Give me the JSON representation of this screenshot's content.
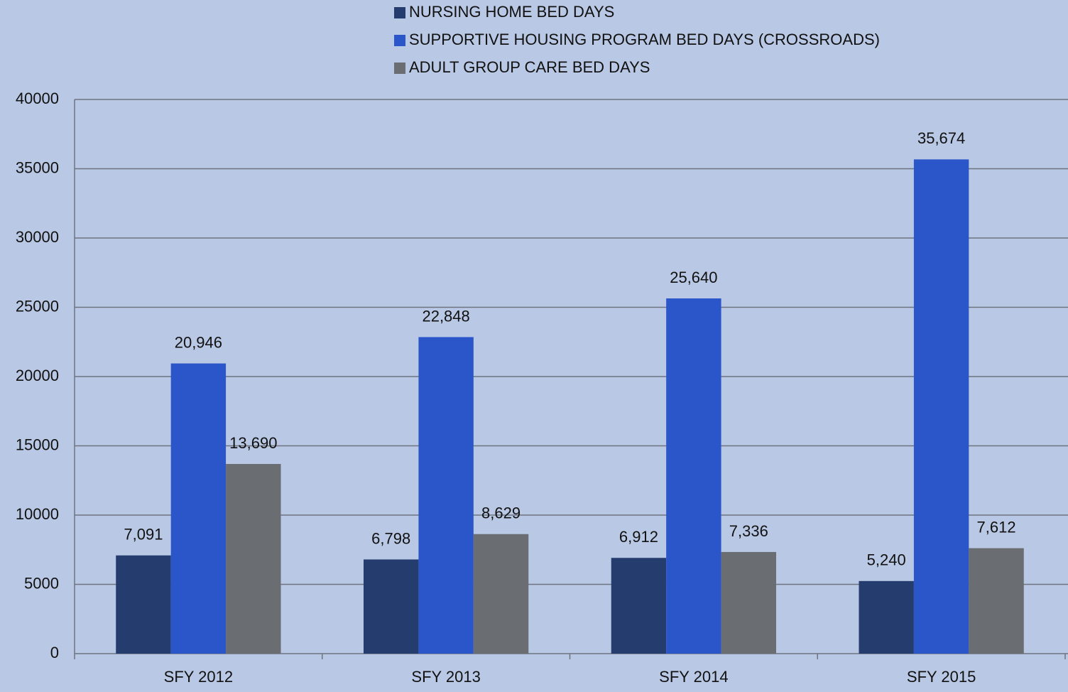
{
  "chart_data": {
    "type": "bar",
    "categories": [
      "SFY 2012",
      "SFY 2013",
      "SFY 2014",
      "SFY 2015"
    ],
    "series": [
      {
        "name": "NURSING HOME BED DAYS",
        "color": "#253d6e",
        "values": [
          7091,
          6798,
          6912,
          5240
        ],
        "value_labels": [
          "7,091",
          "6,798",
          "6,912",
          "5,240"
        ]
      },
      {
        "name": "SUPPORTIVE HOUSING PROGRAM BED DAYS (CROSSROADS)",
        "color": "#2b56c9",
        "values": [
          20946,
          22848,
          25640,
          35674
        ],
        "value_labels": [
          "20,946",
          "22,848",
          "25,640",
          "35,674"
        ]
      },
      {
        "name": "ADULT GROUP CARE BED DAYS",
        "color": "#6a6d72",
        "values": [
          13690,
          8629,
          7336,
          7612
        ],
        "value_labels": [
          "13,690",
          "8,629",
          "7,336",
          "7,612"
        ]
      }
    ],
    "ylim": [
      0,
      40000
    ],
    "yticks": [
      0,
      5000,
      10000,
      15000,
      20000,
      25000,
      30000,
      35000,
      40000
    ],
    "grid": true,
    "legend": "top"
  }
}
